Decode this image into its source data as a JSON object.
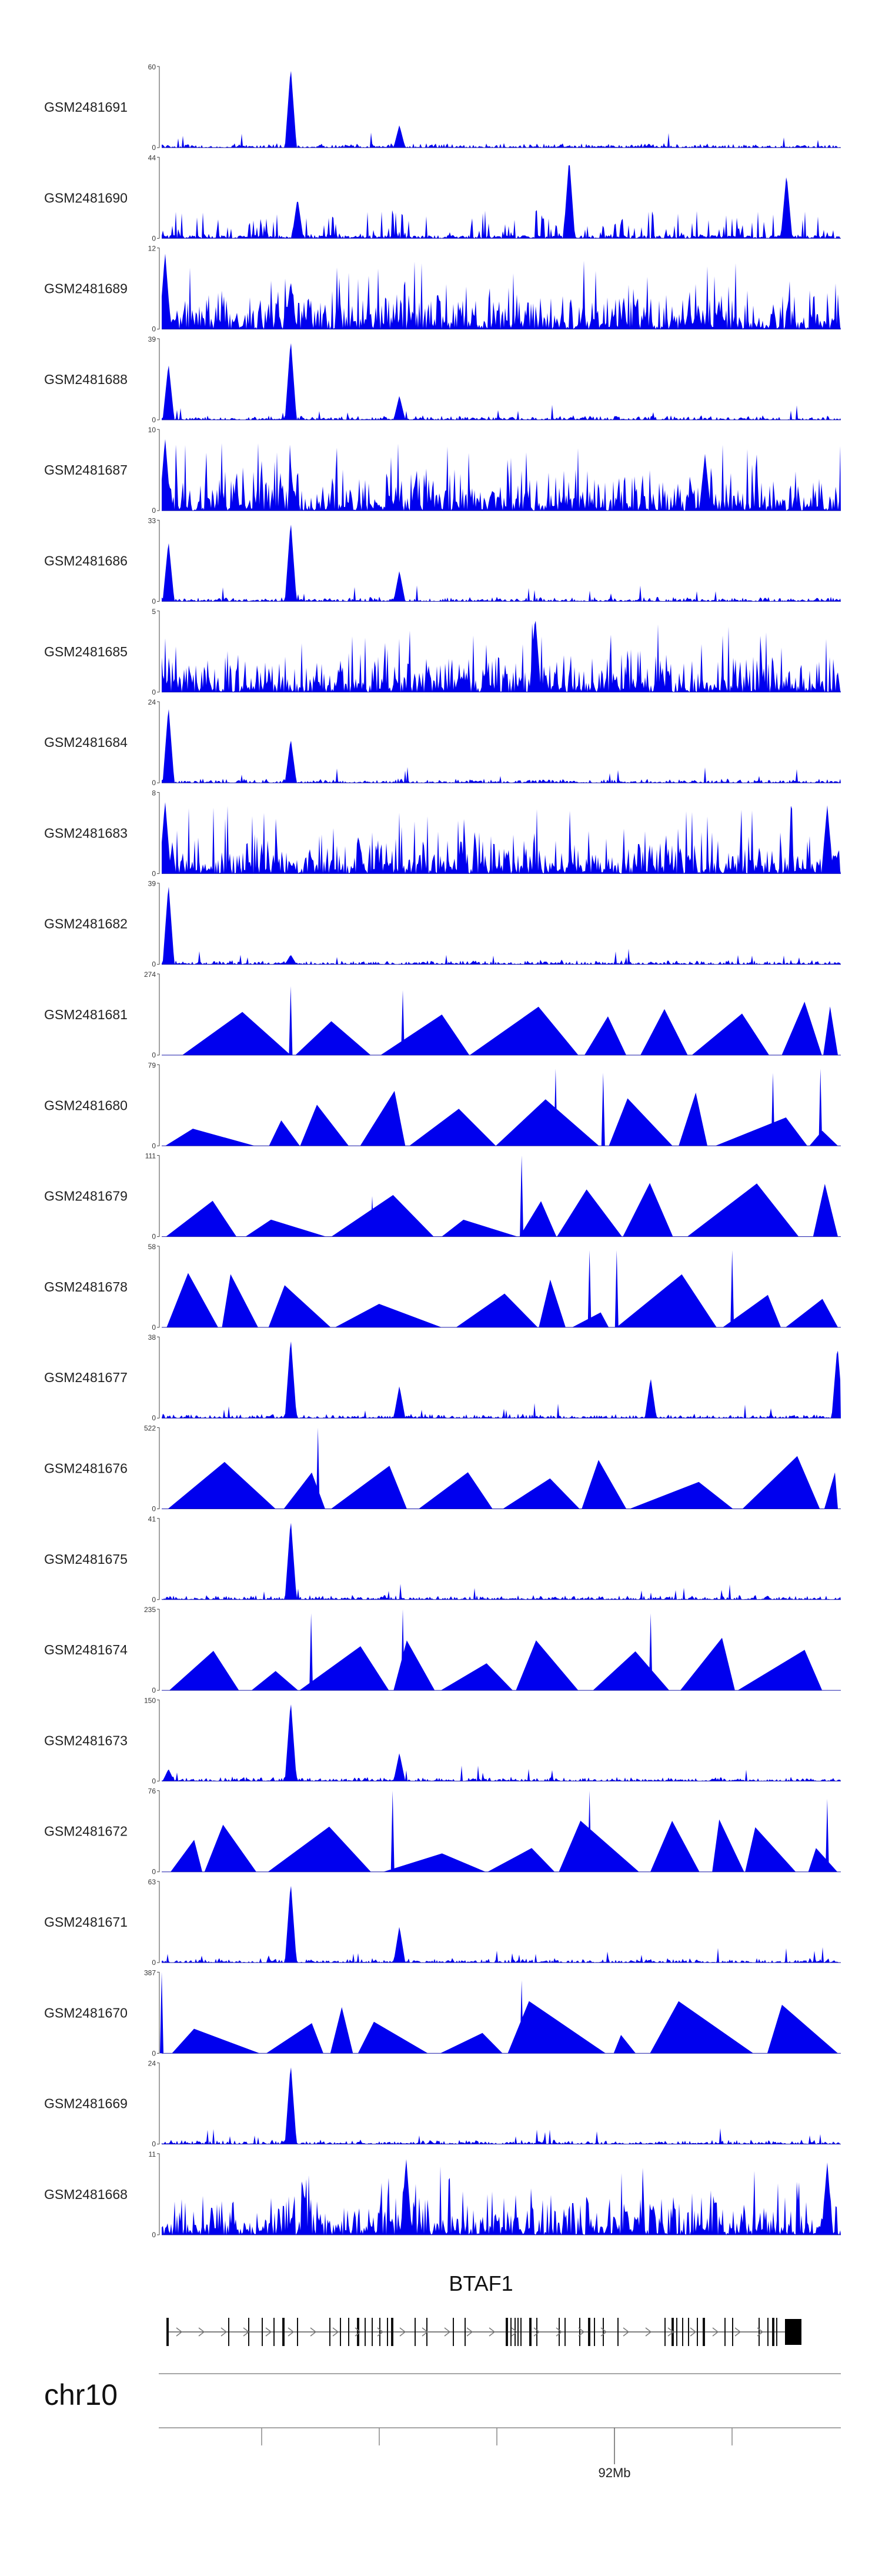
{
  "chart_data": {
    "type": "area",
    "region": "chr10",
    "gene": {
      "name": "BTAF1",
      "strand": "+"
    },
    "axis": {
      "tick_label": "92Mb"
    },
    "tracks": [
      {
        "name": "GSM2481691",
        "ymax": 60,
        "ymin": 0,
        "pattern": "peaked",
        "peaks": [
          [
            0.19,
            1.0
          ],
          [
            0.35,
            0.28
          ]
        ]
      },
      {
        "name": "GSM2481690",
        "ymax": 44,
        "ymin": 0,
        "pattern": "sparse",
        "peaks": [
          [
            0.2,
            0.5
          ],
          [
            0.6,
            1.0
          ],
          [
            0.92,
            0.8
          ]
        ]
      },
      {
        "name": "GSM2481689",
        "ymax": 12,
        "ymin": 0,
        "pattern": "noisy",
        "peaks": [
          [
            0.005,
            0.95
          ],
          [
            0.19,
            0.6
          ]
        ]
      },
      {
        "name": "GSM2481688",
        "ymax": 39,
        "ymin": 0,
        "pattern": "peaked",
        "peaks": [
          [
            0.01,
            0.7
          ],
          [
            0.19,
            1.0
          ],
          [
            0.35,
            0.3
          ]
        ]
      },
      {
        "name": "GSM2481687",
        "ymax": 10,
        "ymin": 0,
        "pattern": "noisy",
        "peaks": [
          [
            0.005,
            0.9
          ],
          [
            0.8,
            0.7
          ]
        ]
      },
      {
        "name": "GSM2481686",
        "ymax": 33,
        "ymin": 0,
        "pattern": "peaked",
        "peaks": [
          [
            0.01,
            0.75
          ],
          [
            0.19,
            1.0
          ],
          [
            0.35,
            0.38
          ]
        ]
      },
      {
        "name": "GSM2481685",
        "ymax": 5,
        "ymin": 0,
        "pattern": "noisy",
        "peaks": [
          [
            0.55,
            0.95
          ]
        ]
      },
      {
        "name": "GSM2481684",
        "ymax": 24,
        "ymin": 0,
        "pattern": "peaked",
        "peaks": [
          [
            0.01,
            0.95
          ],
          [
            0.19,
            0.55
          ]
        ]
      },
      {
        "name": "GSM2481683",
        "ymax": 8,
        "ymin": 0,
        "pattern": "noisy",
        "peaks": [
          [
            0.005,
            0.9
          ],
          [
            0.98,
            0.85
          ]
        ]
      },
      {
        "name": "GSM2481682",
        "ymax": 39,
        "ymin": 0,
        "pattern": "peaked",
        "peaks": [
          [
            0.01,
            1.0
          ],
          [
            0.19,
            0.12
          ]
        ]
      },
      {
        "name": "GSM2481681",
        "ymax": 274,
        "ymin": 0,
        "pattern": "triangles",
        "peaks": [
          [
            0.19,
            0.85
          ],
          [
            0.355,
            0.8
          ]
        ]
      },
      {
        "name": "GSM2481680",
        "ymax": 79,
        "ymin": 0,
        "pattern": "triangles",
        "peaks": [
          [
            0.58,
            0.95
          ],
          [
            0.65,
            0.9
          ],
          [
            0.9,
            0.9
          ],
          [
            0.97,
            0.95
          ]
        ]
      },
      {
        "name": "GSM2481679",
        "ymax": 111,
        "ymin": 0,
        "pattern": "triangles",
        "peaks": [
          [
            0.31,
            0.5
          ],
          [
            0.53,
            1.0
          ]
        ]
      },
      {
        "name": "GSM2481678",
        "ymax": 58,
        "ymin": 0,
        "pattern": "triangles",
        "peaks": [
          [
            0.63,
            0.95
          ],
          [
            0.67,
            0.95
          ],
          [
            0.84,
            0.95
          ]
        ]
      },
      {
        "name": "GSM2481677",
        "ymax": 38,
        "ymin": 0,
        "pattern": "peaked",
        "peaks": [
          [
            0.19,
            1.0
          ],
          [
            0.35,
            0.4
          ],
          [
            0.72,
            0.5
          ],
          [
            0.995,
            0.9
          ]
        ]
      },
      {
        "name": "GSM2481676",
        "ymax": 522,
        "ymin": 0,
        "pattern": "triangles",
        "peaks": [
          [
            0.23,
            1.0
          ]
        ]
      },
      {
        "name": "GSM2481675",
        "ymax": 41,
        "ymin": 0,
        "pattern": "peaked",
        "peaks": [
          [
            0.19,
            1.0
          ]
        ]
      },
      {
        "name": "GSM2481674",
        "ymax": 235,
        "ymin": 0,
        "pattern": "triangles",
        "peaks": [
          [
            0.22,
            0.95
          ],
          [
            0.355,
            1.0
          ],
          [
            0.72,
            0.95
          ]
        ]
      },
      {
        "name": "GSM2481673",
        "ymax": 150,
        "ymin": 0,
        "pattern": "peaked",
        "peaks": [
          [
            0.19,
            1.0
          ],
          [
            0.35,
            0.35
          ],
          [
            0.01,
            0.15
          ]
        ]
      },
      {
        "name": "GSM2481672",
        "ymax": 76,
        "ymin": 0,
        "pattern": "triangles",
        "peaks": [
          [
            0.34,
            1.0
          ],
          [
            0.63,
            1.0
          ],
          [
            0.98,
            0.9
          ]
        ]
      },
      {
        "name": "GSM2481671",
        "ymax": 63,
        "ymin": 0,
        "pattern": "peaked",
        "peaks": [
          [
            0.19,
            1.0
          ],
          [
            0.35,
            0.45
          ]
        ]
      },
      {
        "name": "GSM2481670",
        "ymax": 387,
        "ymin": 0,
        "pattern": "triangles",
        "peaks": [
          [
            0.0,
            1.0
          ],
          [
            0.53,
            0.9
          ]
        ]
      },
      {
        "name": "GSM2481669",
        "ymax": 24,
        "ymin": 0,
        "pattern": "peaked",
        "peaks": [
          [
            0.19,
            1.0
          ]
        ]
      },
      {
        "name": "GSM2481668",
        "ymax": 11,
        "ymin": 0,
        "pattern": "noisy",
        "peaks": [
          [
            0.36,
            0.95
          ],
          [
            0.98,
            0.9
          ]
        ]
      }
    ]
  }
}
